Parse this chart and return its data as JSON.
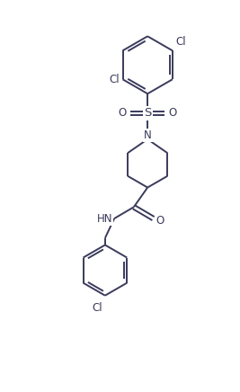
{
  "bg_color": "#ffffff",
  "line_color": "#3a3a5c",
  "line_width": 1.4,
  "text_color": "#3a3a5c",
  "font_size": 8.5,
  "figsize": [
    2.67,
    4.36
  ],
  "dpi": 100,
  "xlim": [
    0,
    10
  ],
  "ylim": [
    0,
    17
  ]
}
